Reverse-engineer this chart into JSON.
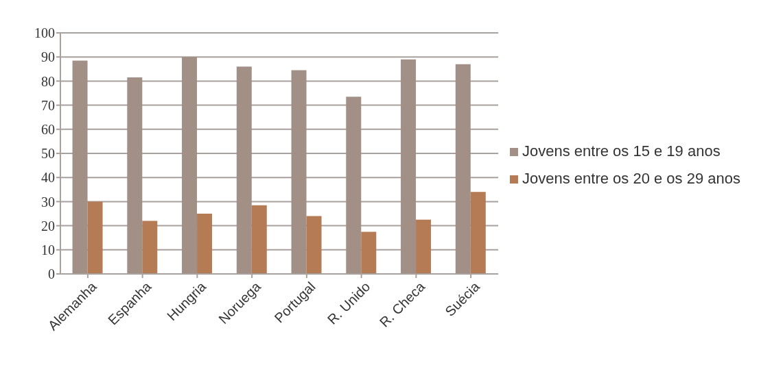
{
  "chart_data": {
    "type": "bar",
    "categories": [
      "Alemanha",
      "Espanha",
      "Hungria",
      "Noruega",
      "Portugal",
      "R. Unido",
      "R. Checa",
      "Suécia"
    ],
    "series": [
      {
        "name": "Jovens entre os 15 e 19 anos",
        "color": "#a29086",
        "values": [
          88.5,
          81.5,
          90,
          86,
          84.5,
          73.5,
          89,
          87
        ]
      },
      {
        "name": "Jovens entre os 20 e os 29 anos",
        "color": "#b57b55",
        "values": [
          30,
          22,
          25,
          28.5,
          24,
          17.5,
          22.5,
          34
        ]
      }
    ],
    "ylim": [
      0,
      100
    ],
    "yticks": [
      0,
      10,
      20,
      30,
      40,
      50,
      60,
      70,
      80,
      90,
      100
    ],
    "grid": "y",
    "legend": "right"
  }
}
